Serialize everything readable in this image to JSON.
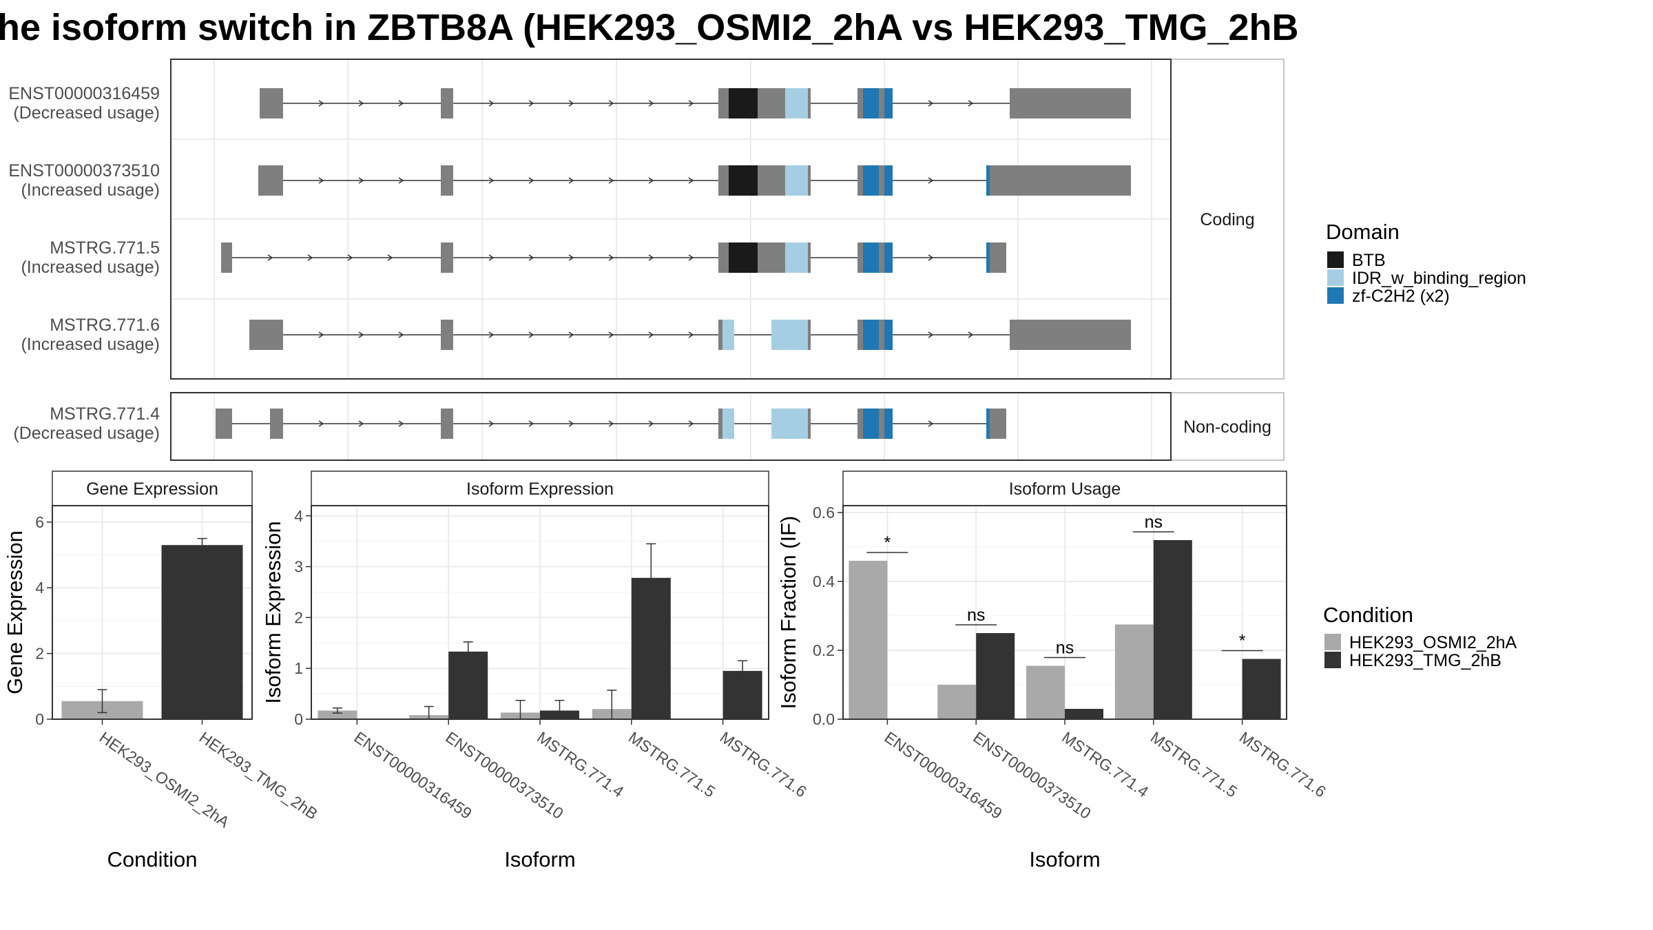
{
  "title": "he isoform switch in ZBTB8A (HEK293_OSMI2_2hA vs HEK293_TMG_2hB",
  "colors": {
    "utr": "#7f7f7f",
    "BTB": "#1a1a1a",
    "IDR_w_binding_region": "#a6cee3",
    "zf-C2H2 (x2)": "#1f78b4",
    "HEK293_OSMI2_2hA": "#a9a9a9",
    "HEK293_TMG_2hB": "#333333"
  },
  "structure": {
    "strips": [
      "Coding",
      "Non-coding"
    ],
    "isoforms": [
      {
        "id": "ENST00000316459",
        "usage": "(Decreased usage)",
        "group": "Coding"
      },
      {
        "id": "ENST00000373510",
        "usage": "(Increased usage)",
        "group": "Coding"
      },
      {
        "id": "MSTRG.771.5",
        "usage": "(Increased usage)",
        "group": "Coding"
      },
      {
        "id": "MSTRG.771.6",
        "usage": "(Increased usage)",
        "group": "Coding"
      },
      {
        "id": "MSTRG.771.4",
        "usage": "(Decreased usage)",
        "group": "Non-coding"
      }
    ]
  },
  "legends": {
    "domain": {
      "title": "Domain",
      "items": [
        "BTB",
        "IDR_w_binding_region",
        "zf-C2H2 (x2)"
      ]
    },
    "condition": {
      "title": "Condition",
      "items": [
        "HEK293_OSMI2_2hA",
        "HEK293_TMG_2hB"
      ]
    }
  },
  "chart_data": [
    {
      "type": "bar",
      "title": "Gene Expression",
      "xlabel": "Condition",
      "ylabel": "Gene Expression",
      "ylim": [
        0,
        6.5
      ],
      "yticks": [
        0,
        2,
        4,
        6
      ],
      "categories": [
        "HEK293_OSMI2_2hA",
        "HEK293_TMG_2hB"
      ],
      "values": [
        0.55,
        5.3
      ],
      "errors": [
        [
          0.2,
          0.9
        ],
        [
          5.15,
          5.5
        ]
      ]
    },
    {
      "type": "bar",
      "title": "Isoform Expression",
      "xlabel": "Isoform",
      "ylabel": "Isoform Expression",
      "ylim": [
        0,
        4.2
      ],
      "yticks": [
        0,
        1,
        2,
        3,
        4
      ],
      "categories": [
        "ENST00000316459",
        "ENST00000373510",
        "MSTRG.771.4",
        "MSTRG.771.5",
        "MSTRG.771.6"
      ],
      "series": [
        {
          "name": "HEK293_OSMI2_2hA",
          "values": [
            0.17,
            0.08,
            0.13,
            0.2,
            0.0
          ],
          "errors": [
            [
              0.12,
              0.22
            ],
            [
              0.0,
              0.25
            ],
            [
              0.0,
              0.37
            ],
            [
              0.0,
              0.57
            ],
            [
              0.0,
              0.0
            ]
          ]
        },
        {
          "name": "HEK293_TMG_2hB",
          "values": [
            0.0,
            1.33,
            0.17,
            2.78,
            0.95
          ],
          "errors": [
            [
              0.0,
              0.0
            ],
            [
              1.15,
              1.52
            ],
            [
              0.05,
              0.37
            ],
            [
              2.12,
              3.45
            ],
            [
              0.77,
              1.15
            ]
          ]
        }
      ]
    },
    {
      "type": "bar",
      "title": "Isoform Usage",
      "xlabel": "Isoform",
      "ylabel": "Isoform Fraction (IF)",
      "ylim": [
        0,
        0.62
      ],
      "yticks": [
        "0.0",
        "0.2",
        "0.4",
        "0.6"
      ],
      "categories": [
        "ENST00000316459",
        "ENST00000373510",
        "MSTRG.771.4",
        "MSTRG.771.5",
        "MSTRG.771.6"
      ],
      "series": [
        {
          "name": "HEK293_OSMI2_2hA",
          "values": [
            0.46,
            0.1,
            0.155,
            0.275,
            0.0
          ]
        },
        {
          "name": "HEK293_TMG_2hB",
          "values": [
            0.0,
            0.25,
            0.03,
            0.52,
            0.175
          ]
        }
      ],
      "significance": [
        "*",
        "ns",
        "ns",
        "ns",
        "*"
      ]
    }
  ]
}
